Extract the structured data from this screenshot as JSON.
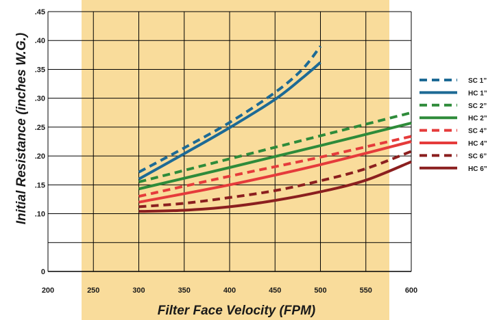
{
  "chart_data": {
    "type": "line",
    "xlabel": "Filter Face Velocity (FPM)",
    "ylabel": "Initial Resistance  (inches W.G.)",
    "xlim": [
      200,
      600
    ],
    "ylim": [
      0,
      0.45
    ],
    "x_ticks": [
      200,
      250,
      300,
      350,
      400,
      450,
      500,
      550,
      600
    ],
    "x_tick_labels": [
      "200",
      "250",
      "300",
      "350",
      "400",
      "450",
      "500",
      "550",
      "600"
    ],
    "y_ticks": [
      0,
      0.05,
      0.1,
      0.15,
      0.2,
      0.25,
      0.3,
      0.35,
      0.4,
      0.45
    ],
    "y_tick_labels": [
      "0",
      "",
      ".10",
      ".15",
      ".20",
      ".25",
      ".30",
      ".35",
      ".40",
      ".45"
    ],
    "grid": true,
    "shaded_region": {
      "x_from": 237,
      "x_to": 640,
      "color": "#f9dc9b"
    },
    "legend_position": "right",
    "series": [
      {
        "name": "SC 1”",
        "style": "dashed",
        "color": "#1d6a95",
        "points": [
          [
            300,
            0.172
          ],
          [
            350,
            0.214
          ],
          [
            400,
            0.258
          ],
          [
            450,
            0.31
          ],
          [
            480,
            0.35
          ],
          [
            500,
            0.39
          ]
        ]
      },
      {
        "name": "HC 1”",
        "style": "solid",
        "color": "#1d6a95",
        "points": [
          [
            300,
            0.16
          ],
          [
            350,
            0.204
          ],
          [
            400,
            0.249
          ],
          [
            450,
            0.298
          ],
          [
            480,
            0.335
          ],
          [
            500,
            0.362
          ]
        ]
      },
      {
        "name": "SC 2”",
        "style": "dashed",
        "color": "#2e8b3a",
        "points": [
          [
            300,
            0.155
          ],
          [
            400,
            0.195
          ],
          [
            500,
            0.235
          ],
          [
            600,
            0.275
          ]
        ]
      },
      {
        "name": "HC 2”",
        "style": "solid",
        "color": "#2e8b3a",
        "points": [
          [
            300,
            0.143
          ],
          [
            400,
            0.18
          ],
          [
            500,
            0.218
          ],
          [
            600,
            0.257
          ]
        ]
      },
      {
        "name": "SC 4”",
        "style": "dashed",
        "color": "#e53b3b",
        "points": [
          [
            300,
            0.13
          ],
          [
            400,
            0.165
          ],
          [
            500,
            0.198
          ],
          [
            600,
            0.234
          ]
        ]
      },
      {
        "name": "HC 4”",
        "style": "solid",
        "color": "#e53b3b",
        "points": [
          [
            300,
            0.12
          ],
          [
            400,
            0.15
          ],
          [
            500,
            0.185
          ],
          [
            600,
            0.225
          ]
        ]
      },
      {
        "name": "SC 6”",
        "style": "dashed",
        "color": "#8b1f1f",
        "points": [
          [
            300,
            0.112
          ],
          [
            350,
            0.118
          ],
          [
            400,
            0.128
          ],
          [
            450,
            0.14
          ],
          [
            500,
            0.157
          ],
          [
            550,
            0.178
          ],
          [
            600,
            0.208
          ]
        ]
      },
      {
        "name": "HC 6”",
        "style": "solid",
        "color": "#8b1f1f",
        "points": [
          [
            300,
            0.104
          ],
          [
            350,
            0.106
          ],
          [
            400,
            0.112
          ],
          [
            450,
            0.123
          ],
          [
            500,
            0.138
          ],
          [
            550,
            0.158
          ],
          [
            600,
            0.19
          ]
        ]
      }
    ]
  }
}
